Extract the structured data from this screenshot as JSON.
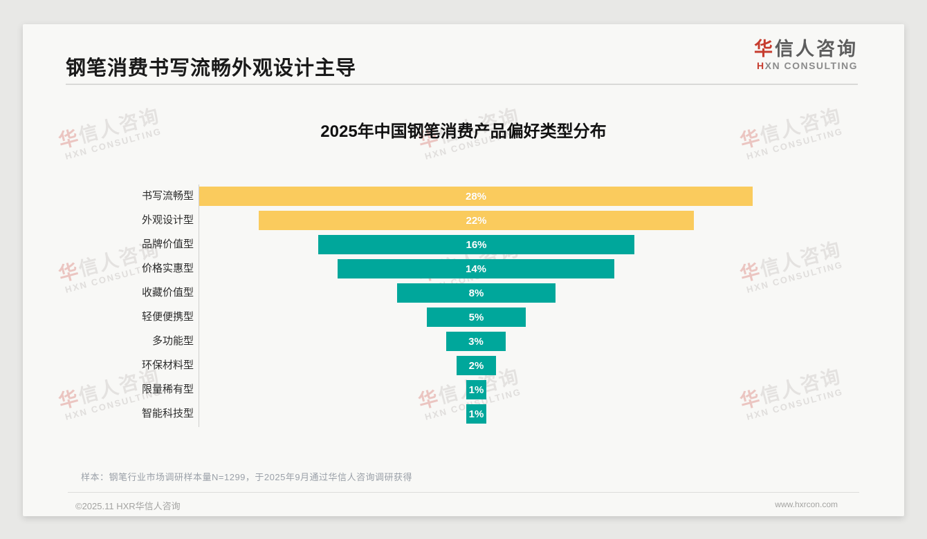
{
  "header": {
    "title": "钢笔消费书写流畅外观设计主导"
  },
  "logo": {
    "cn_first": "华",
    "cn_rest": "信人咨询",
    "en_first": "H",
    "en_rest": "XN CONSULTING"
  },
  "watermark": {
    "cn_first": "华",
    "cn_rest": "信人咨询",
    "en": "HXN CONSULTING"
  },
  "chart_data": {
    "type": "bar",
    "variant": "horizontal-centered-funnel",
    "title": "2025年中国钢笔消费产品偏好类型分布",
    "categories": [
      "书写流畅型",
      "外观设计型",
      "品牌价值型",
      "价格实惠型",
      "收藏价值型",
      "轻便便携型",
      "多功能型",
      "环保材料型",
      "限量稀有型",
      "智能科技型"
    ],
    "values": [
      28,
      22,
      16,
      14,
      8,
      5,
      3,
      2,
      1,
      1
    ],
    "labels": [
      "28%",
      "22%",
      "16%",
      "14%",
      "8%",
      "5%",
      "3%",
      "2%",
      "1%",
      "1%"
    ],
    "unit": "%",
    "bar_colors": [
      "#FACB5D",
      "#FACB5D",
      "#00A79B",
      "#00A79B",
      "#00A79B",
      "#00A79B",
      "#00A79B",
      "#00A79B",
      "#00A79B",
      "#00A79B"
    ],
    "value_label_color": "#FFFFFF",
    "xlabel": "",
    "ylabel": "",
    "xlim": [
      0,
      28
    ],
    "grid": false,
    "legend": false
  },
  "footnote": "样本：钢笔行业市场调研样本量N=1299，于2025年9月通过华信人咨询调研获得",
  "footer": {
    "copyright": "©2025.11 HXR华信人咨询",
    "website": "www.hxrcon.com"
  },
  "colors": {
    "accent_red": "#C63C2E",
    "bar_yellow": "#FACB5D",
    "bar_teal": "#00A79B",
    "page_bg": "#E8E8E6",
    "card_bg": "#F8F8F6"
  }
}
